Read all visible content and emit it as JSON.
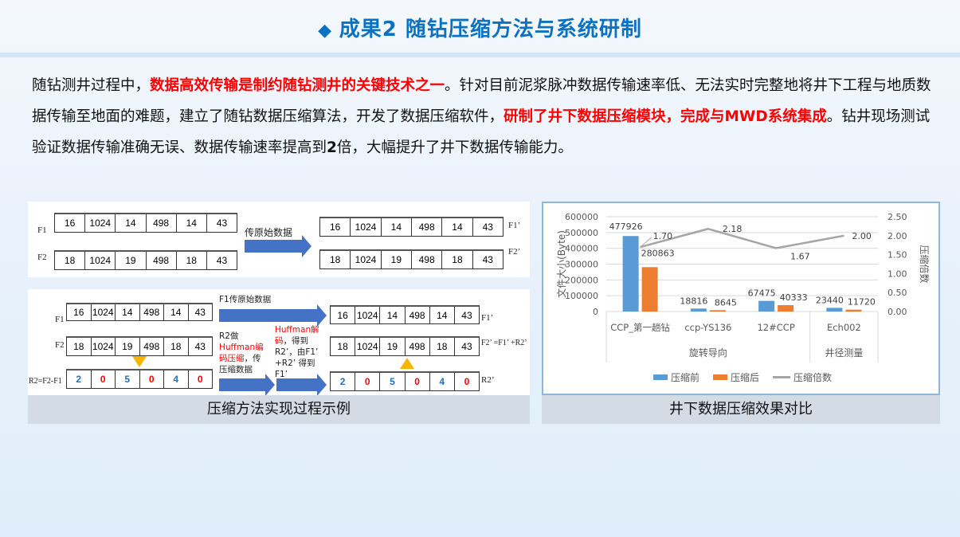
{
  "title": {
    "icon": "diamond-icon",
    "text": "成果2  随钻压缩方法与系统研制"
  },
  "paragraph": [
    {
      "t": "随钻测井过程中，",
      "s": ""
    },
    {
      "t": "数据高效传输是制约随钻测井的关键技术之一",
      "s": "red"
    },
    {
      "t": "。针对目前泥浆脉冲数据传输速率低、无法实时完整地将井下工程与地质数据传输至地面的难题，建立了随钻数据压缩算法，开发了数据压缩软件，",
      "s": ""
    },
    {
      "t": "研制了井下数据压缩模块，完成与MWD系统集成",
      "s": "red"
    },
    {
      "t": "。钻井现场测试验证数据传输准确无误、数据传输速率提高到",
      "s": ""
    },
    {
      "t": "2",
      "s": "b"
    },
    {
      "t": "倍，大幅提升了井下数据传输能力。",
      "s": ""
    }
  ],
  "diagram1": {
    "labels": {
      "f1": "F1",
      "f2": "F2",
      "f1p": "F1’",
      "f2p": "F2’",
      "arrow": "传原始数据"
    },
    "f1": [
      "16",
      "1024",
      "14",
      "498",
      "14",
      "43"
    ],
    "f2": [
      "18",
      "1024",
      "19",
      "498",
      "18",
      "43"
    ]
  },
  "diagram2": {
    "labels": {
      "f1": "F1",
      "f2": "F2",
      "r2": "R2=F2-F1",
      "f1p": "F1’",
      "f2p": "F2’ =F1’ +R2’",
      "r2p": "R2’",
      "arrow1": "F1传原始数据",
      "note1a": "R2做",
      "note1b": "Huffman",
      "note1c": "编码压缩",
      "note1d": "，传压缩数据",
      "note2a": "Huffman解码",
      "note2b": "，得到R2’，由F1’ +R2’ 得到F1’"
    },
    "f1": [
      "16",
      "1024",
      "14",
      "498",
      "14",
      "43"
    ],
    "f2": [
      "18",
      "1024",
      "19",
      "498",
      "18",
      "43"
    ],
    "r2": [
      "2",
      "0",
      "5",
      "0",
      "4",
      "0"
    ],
    "r2_colors": [
      "#1f6fc0",
      "#f00",
      "#1f6fc0",
      "#f00",
      "#1f6fc0",
      "#f00"
    ],
    "caption": "压缩方法实现过程示例"
  },
  "chart_caption": "井下数据压缩效果对比",
  "chart_data": {
    "type": "bar",
    "categories": [
      "CCP_第一趟钻",
      "ccp-YS136",
      "12#CCP",
      "Ech002"
    ],
    "groups": [
      {
        "label": "旋转导向",
        "span": 3
      },
      {
        "label": "井径测量",
        "span": 1
      }
    ],
    "series": [
      {
        "name": "压缩前",
        "type": "bar",
        "axis": "left",
        "color": "#5b9bd5",
        "values": [
          477926,
          18816,
          67475,
          23440
        ]
      },
      {
        "name": "压缩后",
        "type": "bar",
        "axis": "left",
        "color": "#ed7d31",
        "values": [
          280863,
          8645,
          40333,
          11720
        ]
      },
      {
        "name": "压缩倍数",
        "type": "line",
        "axis": "right",
        "color": "#a5a5a5",
        "values": [
          1.7,
          2.18,
          1.67,
          2.0
        ]
      }
    ],
    "ylabel": "文件大小(Byte)",
    "y2label": "压缩倍数",
    "ylim": [
      0,
      600000
    ],
    "yticks": [
      "0",
      "100000",
      "200000",
      "300000",
      "400000",
      "500000",
      "600000"
    ],
    "y2lim": [
      0,
      2.5
    ],
    "y2ticks": [
      "0.00",
      "0.50",
      "1.00",
      "1.50",
      "2.00",
      "2.50"
    ],
    "grid": true,
    "legend": "bottom"
  }
}
